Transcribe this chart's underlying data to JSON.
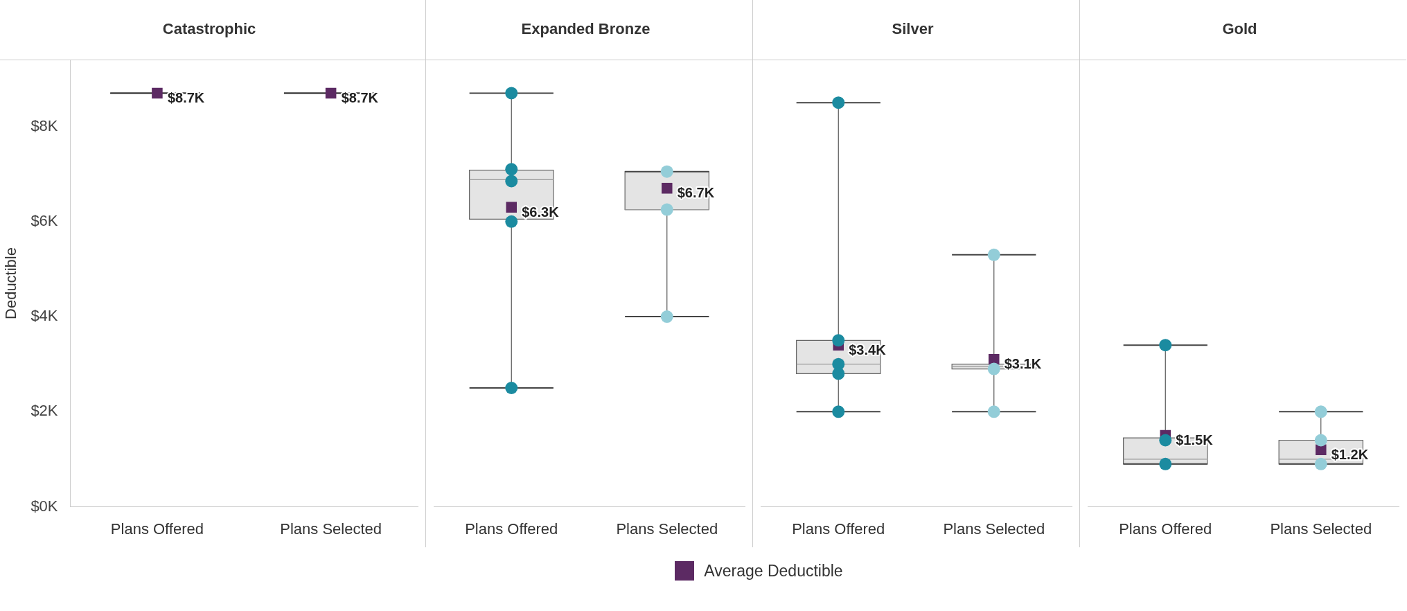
{
  "chart_data": [
    {
      "type": "box",
      "title": "Catastrophic",
      "ylabel": "Deductible",
      "categories": [
        "Plans Offered",
        "Plans Selected"
      ],
      "ylim": [
        0,
        9.4
      ],
      "yticks": [
        {
          "value": 0,
          "label": "$0K"
        },
        {
          "value": 2,
          "label": "$2K"
        },
        {
          "value": 4,
          "label": "$4K"
        },
        {
          "value": 6,
          "label": "$6K"
        },
        {
          "value": 8,
          "label": "$8K"
        }
      ],
      "legend": "bottom",
      "series": [
        {
          "type": "box",
          "color": "#444444",
          "boxes": [
            {
              "low": 8.7,
              "q1": 8.7,
              "median": 8.7,
              "q3": 8.7,
              "high": 8.7
            },
            {
              "low": 8.7,
              "q1": 8.7,
              "median": 8.7,
              "q3": 8.7,
              "high": 8.7
            }
          ]
        },
        {
          "type": "scatter",
          "name": "Average Deductible",
          "color": "#5c2a63",
          "marker": "square",
          "x": [
            "Plans Offered",
            "Plans Selected"
          ],
          "values": [
            8.7,
            8.7
          ],
          "value_labels": [
            "$8.7K",
            "$8.7K"
          ]
        }
      ]
    },
    {
      "type": "box",
      "title": "Expanded Bronze",
      "categories": [
        "Plans Offered",
        "Plans Selected"
      ],
      "ylim": [
        0,
        9.4
      ],
      "tick_labels": "x",
      "series": [
        {
          "type": "box",
          "color": "#e4e4e4",
          "boxes": [
            {
              "low": 2.5,
              "q1": 6.05,
              "median": 6.88,
              "q3": 7.08,
              "high": 8.7
            },
            {
              "low": 4.0,
              "q1": 6.25,
              "median": 6.25,
              "q3": 7.05,
              "high": 7.05
            }
          ]
        },
        {
          "type": "scatter",
          "color": "#1b8ba0",
          "marker": "circle",
          "x": [
            "Plans Offered",
            "Plans Offered",
            "Plans Offered",
            "Plans Offered",
            "Plans Offered"
          ],
          "values": [
            8.7,
            7.1,
            6.85,
            6.0,
            2.5
          ]
        },
        {
          "type": "scatter",
          "color": "#93cdd8",
          "marker": "circle",
          "x": [
            "Plans Selected",
            "Plans Selected",
            "Plans Selected"
          ],
          "values": [
            7.05,
            6.25,
            4.0
          ]
        },
        {
          "type": "scatter",
          "color": "#5c2a63",
          "marker": "square",
          "x": [
            "Plans Offered",
            "Plans Selected"
          ],
          "values": [
            6.3,
            6.7
          ],
          "value_labels": [
            "$6.3K",
            "$6.7K"
          ]
        }
      ]
    },
    {
      "type": "box",
      "title": "Silver",
      "categories": [
        "Plans Offered",
        "Plans Selected"
      ],
      "ylim": [
        0,
        9.4
      ],
      "tick_labels": "x",
      "series": [
        {
          "type": "box",
          "color": "#e4e4e4",
          "boxes": [
            {
              "low": 2.0,
              "q1": 2.8,
              "median": 3.0,
              "q3": 3.5,
              "high": 8.5
            },
            {
              "low": 2.0,
              "q1": 2.9,
              "median": 2.95,
              "q3": 3.0,
              "high": 5.3
            }
          ]
        },
        {
          "type": "scatter",
          "color": "#1b8ba0",
          "marker": "circle",
          "x": [
            "Plans Offered",
            "Plans Offered",
            "Plans Offered",
            "Plans Offered",
            "Plans Offered"
          ],
          "values": [
            8.5,
            3.5,
            3.0,
            2.8,
            2.0
          ]
        },
        {
          "type": "scatter",
          "color": "#93cdd8",
          "marker": "circle",
          "x": [
            "Plans Selected",
            "Plans Selected",
            "Plans Selected"
          ],
          "values": [
            5.3,
            2.9,
            2.0
          ]
        },
        {
          "type": "scatter",
          "color": "#5c2a63",
          "marker": "square",
          "x": [
            "Plans Offered",
            "Plans Selected"
          ],
          "values": [
            3.4,
            3.1
          ],
          "value_labels": [
            "$3.4K",
            "$3.1K"
          ]
        }
      ]
    },
    {
      "type": "box",
      "title": "Gold",
      "categories": [
        "Plans Offered",
        "Plans Selected"
      ],
      "ylim": [
        0,
        9.4
      ],
      "tick_labels": "x",
      "series": [
        {
          "type": "box",
          "color": "#e4e4e4",
          "boxes": [
            {
              "low": 0.9,
              "q1": 0.9,
              "median": 1.0,
              "q3": 1.45,
              "high": 3.4
            },
            {
              "low": 0.9,
              "q1": 0.9,
              "median": 1.0,
              "q3": 1.4,
              "high": 2.0
            }
          ]
        },
        {
          "type": "scatter",
          "color": "#1b8ba0",
          "marker": "circle",
          "x": [
            "Plans Offered",
            "Plans Offered",
            "Plans Offered"
          ],
          "values": [
            3.4,
            1.4,
            0.9
          ]
        },
        {
          "type": "scatter",
          "color": "#93cdd8",
          "marker": "circle",
          "x": [
            "Plans Selected",
            "Plans Selected",
            "Plans Selected"
          ],
          "values": [
            2.0,
            1.4,
            0.9
          ]
        },
        {
          "type": "scatter",
          "color": "#5c2a63",
          "marker": "square",
          "x": [
            "Plans Offered",
            "Plans Selected"
          ],
          "values": [
            1.5,
            1.2
          ],
          "value_labels": [
            "$1.5K",
            "$1.2K"
          ]
        }
      ]
    }
  ]
}
